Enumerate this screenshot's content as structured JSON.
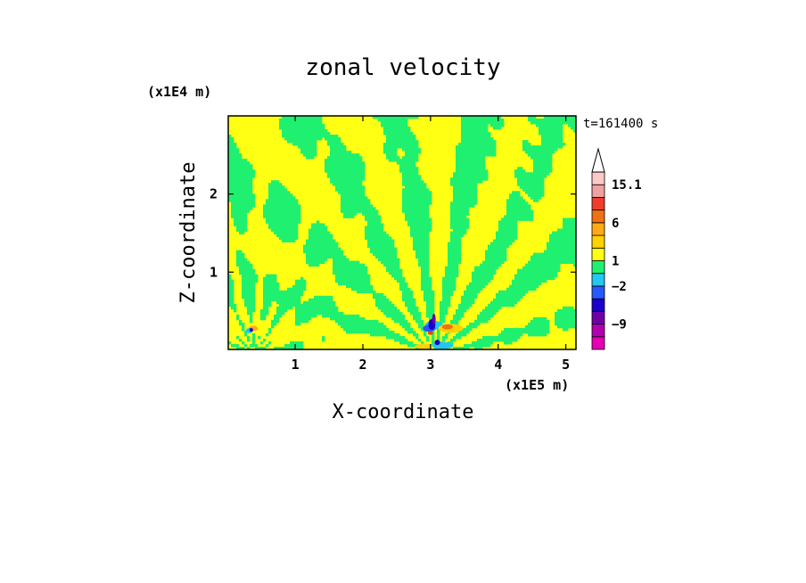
{
  "chart_data": {
    "type": "heatmap",
    "title": "zonal velocity",
    "xlabel": "X-coordinate",
    "ylabel": "Z-coordinate",
    "x_unit": "(x1E5 m)",
    "y_unit": "(x1E4 m)",
    "time_label": "t=161400 s",
    "xlim": [
      0.01,
      5.15
    ],
    "ylim": [
      0.01,
      3.0
    ],
    "x_ticks": [
      1,
      2,
      3,
      4,
      5
    ],
    "y_ticks": [
      1,
      2
    ],
    "colorbar": {
      "labels": [
        "15.1",
        "6",
        "1",
        "−2",
        "−9"
      ],
      "levels": [
        {
          "color": "#e600b4"
        },
        {
          "color": "#b000b0"
        },
        {
          "color": "#6e00a6"
        },
        {
          "color": "#1a00c8"
        },
        {
          "color": "#2858ff"
        },
        {
          "color": "#22c8f0"
        },
        {
          "color": "#20f070"
        },
        {
          "color": "#ffff14"
        },
        {
          "color": "#ffd200"
        },
        {
          "color": "#ffaa14"
        },
        {
          "color": "#f07014"
        },
        {
          "color": "#f03c28"
        },
        {
          "color": "#f0a0a0"
        },
        {
          "color": "#ffc8c8"
        }
      ],
      "extend_top": true
    },
    "field_description": "Wave pattern radiating upward from two sources near x=0.4 and x=3.05 (x1E5 m), alternating yellow (~0 to 1) and green (~-1 to 0) bands; strong blue/red anomalies near the surface at the sources."
  },
  "colors": {
    "background": "#ffffff",
    "frame": "#000000",
    "positive_band": "#ffff14",
    "negative_band": "#20f070"
  }
}
